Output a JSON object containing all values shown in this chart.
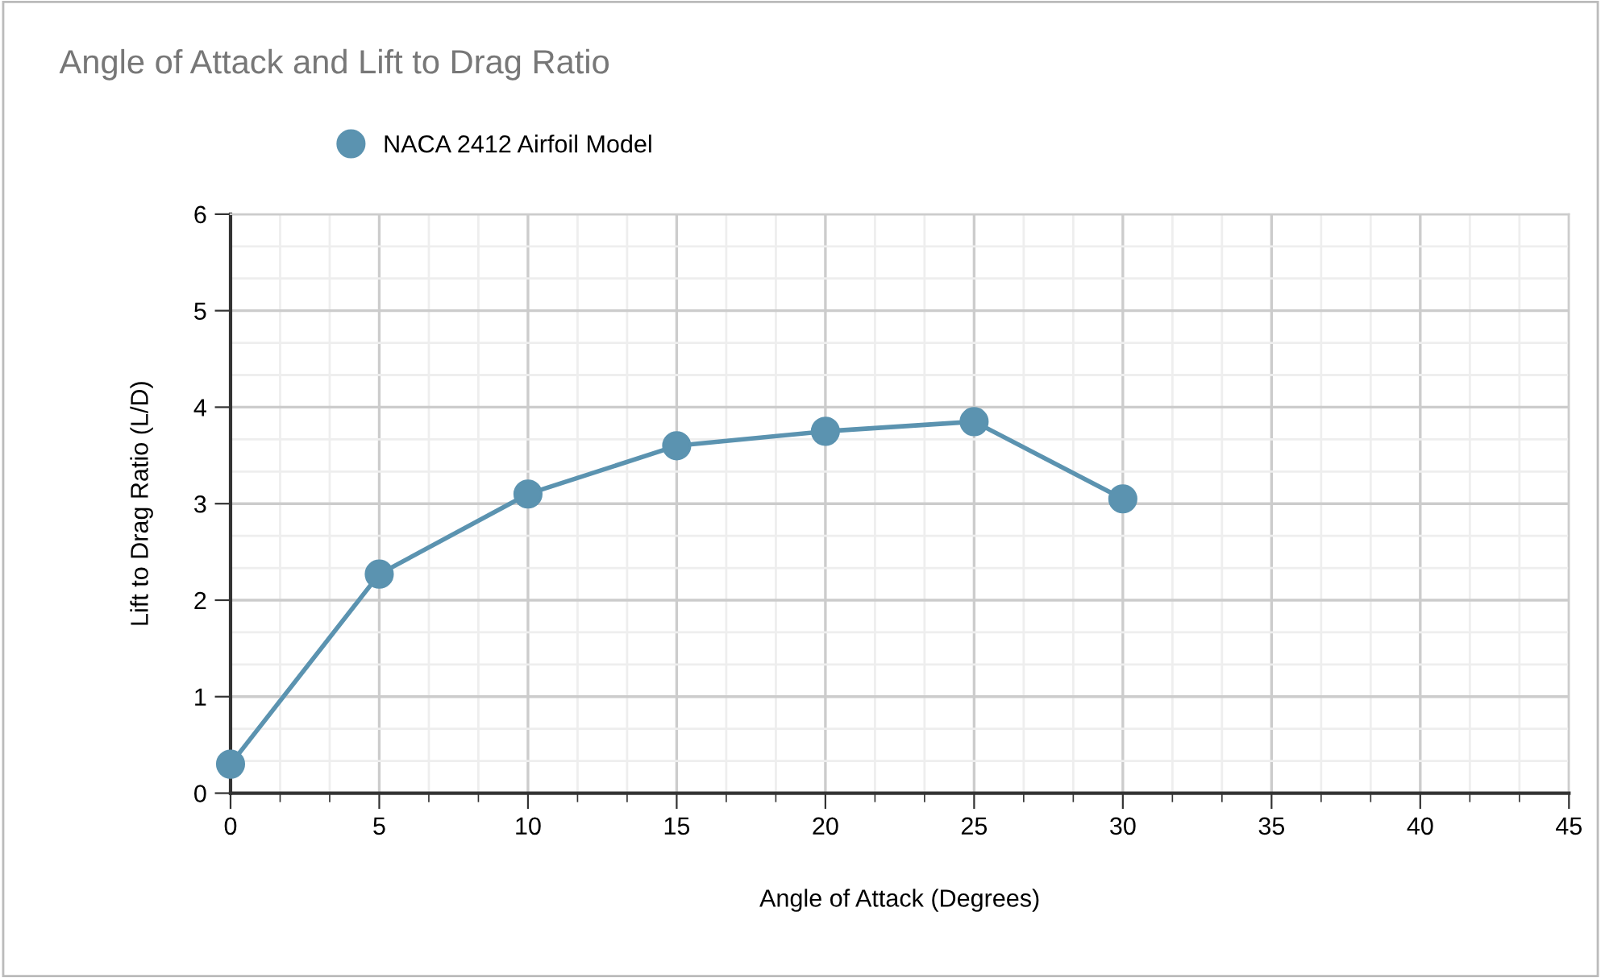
{
  "chart_data": {
    "type": "line",
    "title": "Angle of Attack and Lift to Drag Ratio",
    "xlabel": "Angle of Attack (Degrees)",
    "ylabel": "Lift to Drag Ratio (L/D)",
    "x": [
      0,
      5,
      10,
      15,
      20,
      25,
      30
    ],
    "series": [
      {
        "name": "NACA 2412 Airfoil Model",
        "color": "#5b93b0",
        "values": [
          0.3,
          2.27,
          3.1,
          3.6,
          3.75,
          3.85,
          3.05
        ]
      }
    ],
    "xlim": [
      0,
      45
    ],
    "xticks": [
      0,
      5,
      10,
      15,
      20,
      25,
      30,
      35,
      40,
      45
    ],
    "ylim": [
      0,
      6
    ],
    "yticks": [
      0,
      1,
      2,
      3,
      4,
      5,
      6
    ],
    "grid": true,
    "legend": "top left",
    "marker": "circle",
    "line_style": "solid"
  }
}
